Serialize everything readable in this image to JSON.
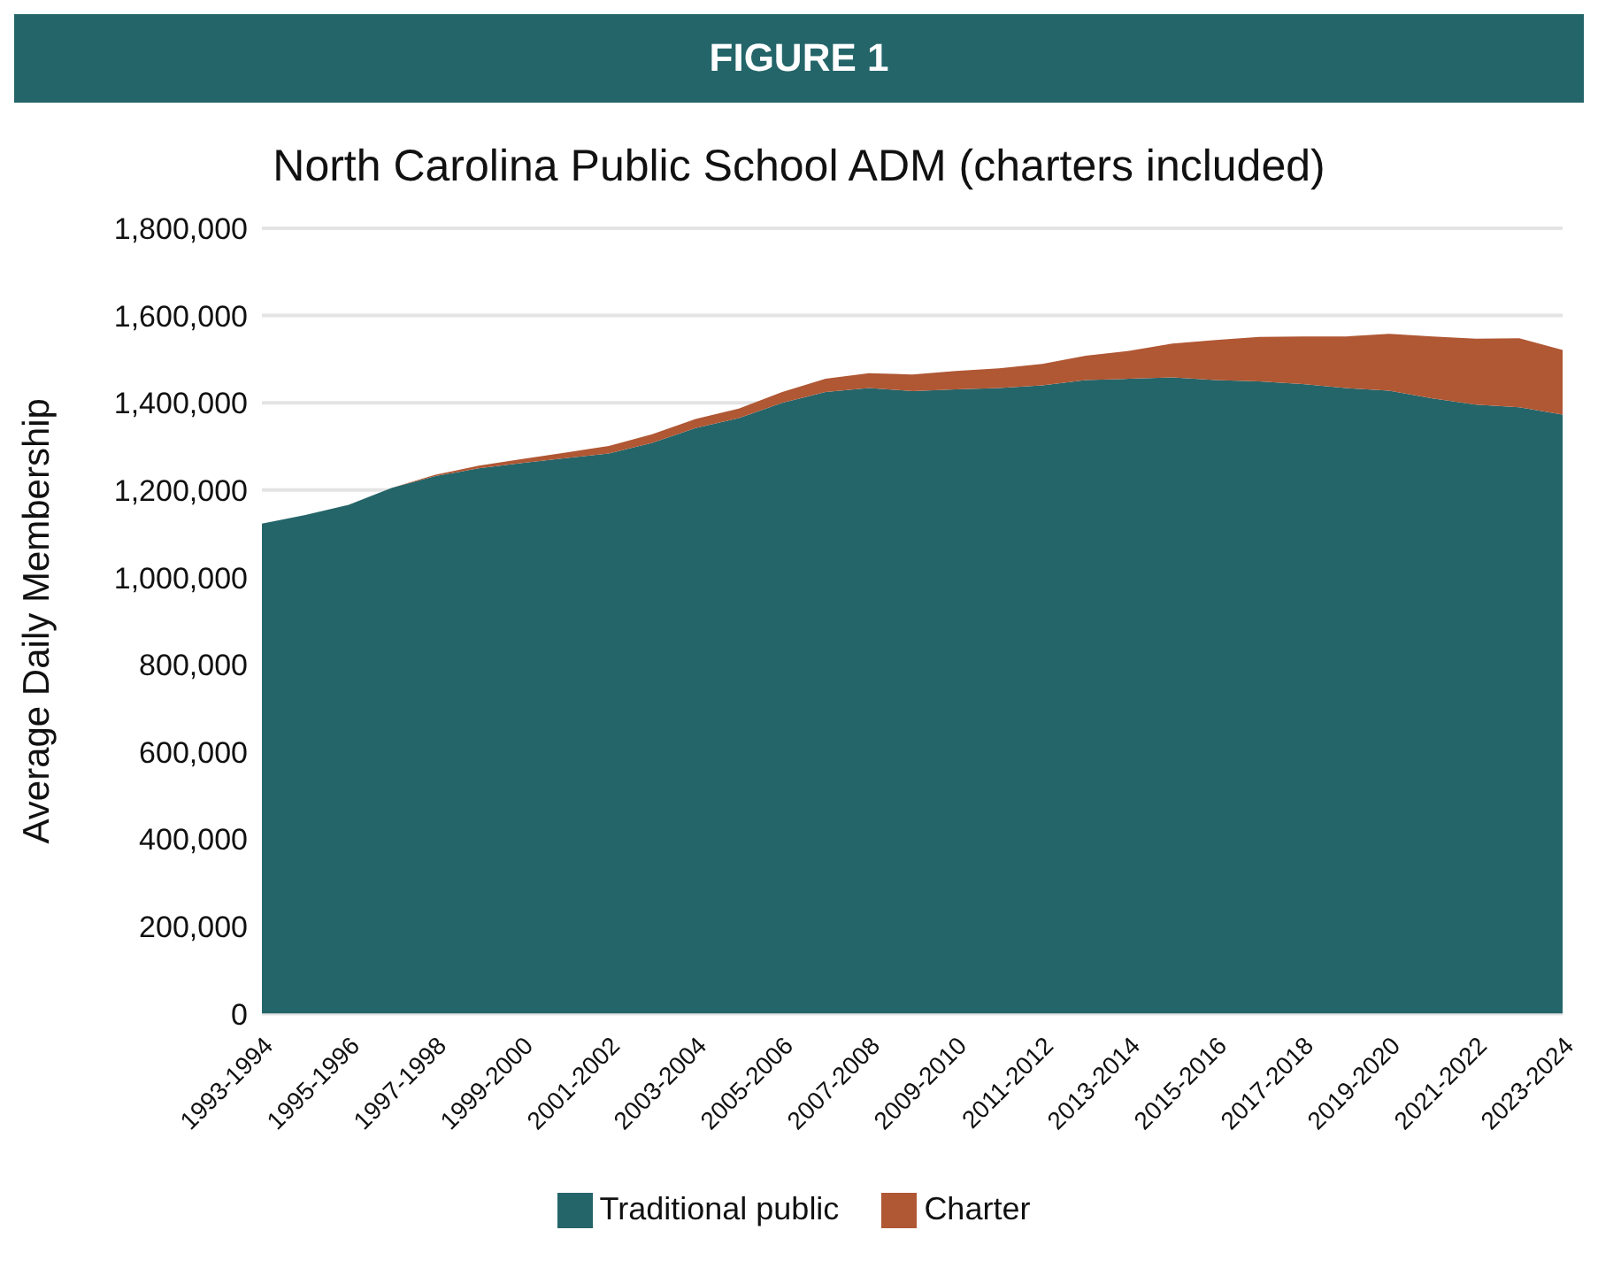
{
  "chart_data": {
    "type": "area",
    "title": "FIGURE 1",
    "subtitle": "North Carolina Public School ADM (charters included)",
    "ylabel": "Average Daily Membership",
    "stacked": true,
    "categories": [
      "1993-1994",
      null,
      "1995-1996",
      null,
      "1997-1998",
      null,
      "1999-2000",
      null,
      "2001-2002",
      null,
      "2003-2004",
      null,
      "2005-2006",
      null,
      "2007-2008",
      null,
      "2009-2010",
      null,
      "2011-2012",
      null,
      "2013-2014",
      null,
      "2015-2016",
      null,
      "2017-2018",
      null,
      "2019-2020",
      null,
      "2021-2022",
      null,
      "2023-2024"
    ],
    "series": [
      {
        "name": "Traditional public",
        "color": "#246569",
        "values": [
          1123000,
          1143000,
          1166000,
          1205000,
          1232000,
          1250000,
          1262000,
          1273000,
          1284000,
          1308000,
          1342000,
          1365000,
          1400000,
          1425000,
          1434000,
          1427000,
          1431000,
          1434000,
          1440000,
          1452000,
          1455000,
          1458000,
          1452000,
          1449000,
          1443000,
          1434000,
          1428000,
          1410000,
          1396000,
          1390000,
          1373000
        ]
      },
      {
        "name": "Charter",
        "color": "#b05734",
        "values": [
          0,
          0,
          0,
          0,
          3000,
          6000,
          9000,
          13000,
          17000,
          20000,
          21000,
          22000,
          25000,
          30000,
          34000,
          38000,
          42000,
          45000,
          49000,
          56000,
          64000,
          78000,
          92000,
          102000,
          109000,
          118000,
          130000,
          142000,
          151000,
          158000,
          148000
        ]
      }
    ],
    "ylim": [
      0,
      1800000
    ],
    "yticks": [
      0,
      {
        "value": 200000,
        "label": "200,000"
      },
      {
        "value": 400000,
        "label": "400,000"
      },
      {
        "value": 600000,
        "label": "600,000"
      },
      {
        "value": 800000,
        "label": "800,000"
      },
      {
        "value": 1000000,
        "label": "1,000,000"
      },
      {
        "value": 1200000,
        "label": "1,200,000"
      },
      {
        "value": 1400000,
        "label": "1,400,000"
      },
      {
        "value": 1600000,
        "label": "1,600,000"
      },
      {
        "value": 1800000,
        "label": "1,800,000"
      }
    ],
    "grid": "y",
    "legend": "bottom"
  }
}
